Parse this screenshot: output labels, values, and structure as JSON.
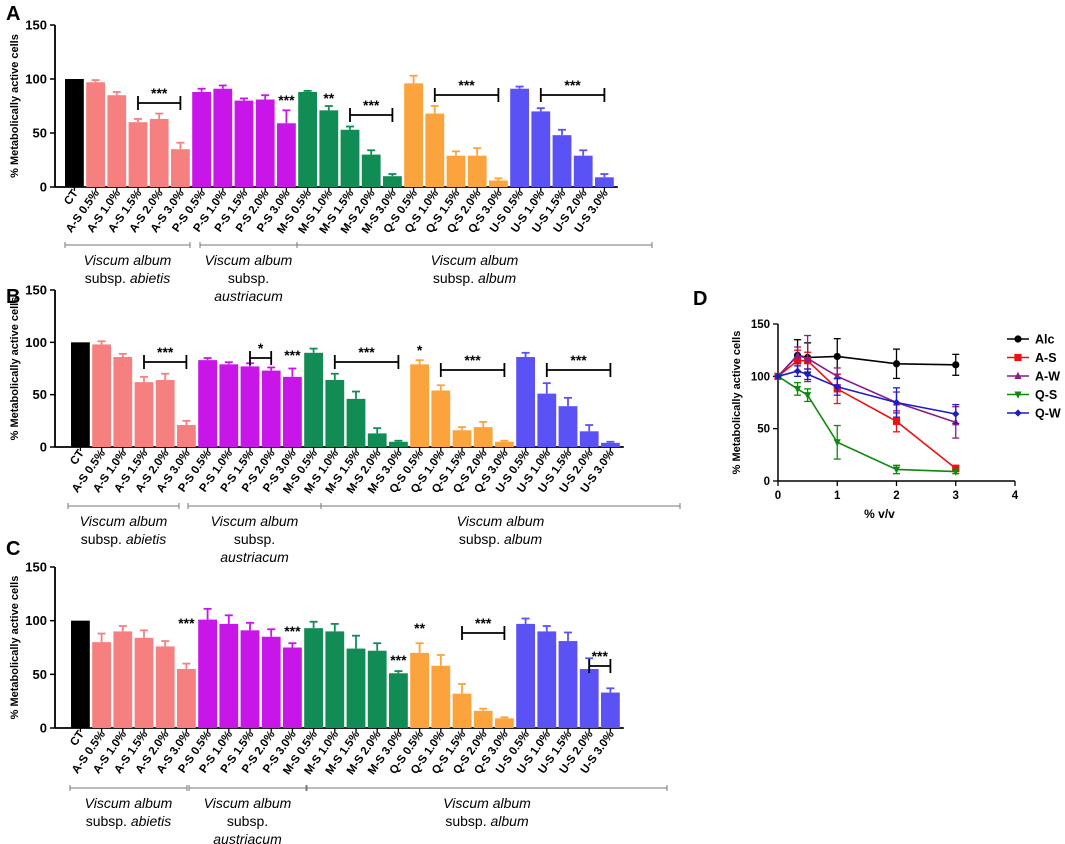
{
  "chart_data": [
    {
      "panel": "A",
      "type": "bar",
      "ylabel": "% Metabolically active cells",
      "ylim": [
        0,
        150
      ],
      "yticks": [
        0,
        50,
        100,
        150
      ],
      "categories": [
        "CT",
        "A-S 0.5%",
        "A-S 1.0%",
        "A-S 1.5%",
        "A-S 2.0%",
        "A-S 3.0%",
        "P-S 0.5%",
        "P-S 1.0%",
        "P-S 1.5%",
        "P-S 2.0%",
        "P-S 3.0%",
        "M-S 0.5%",
        "M-S 1.0%",
        "M-S 1.5%",
        "M-S 2.0%",
        "M-S 3.0%",
        "Q-S 0.5%",
        "Q-S 1.0%",
        "Q-S 1.5%",
        "Q-S 2.0%",
        "Q-S 3.0%",
        "U-S 0.5%",
        "U-S 1.0%",
        "U-S 1.5%",
        "U-S 2.0%",
        "U-S 3.0%"
      ],
      "values": [
        100,
        97,
        85,
        60,
        63,
        35,
        88,
        91,
        80,
        81,
        59,
        88,
        71,
        53,
        30,
        10,
        96,
        68,
        29,
        29,
        6,
        91,
        70,
        48,
        29,
        9
      ],
      "errors": [
        0,
        2,
        3,
        3,
        5,
        6,
        3,
        3,
        2,
        4,
        12,
        1,
        4,
        3,
        4,
        2,
        7,
        7,
        4,
        7,
        2,
        2,
        3,
        5,
        5,
        3
      ],
      "groups": [
        {
          "name": "Viscum album",
          "sub": "subsp. ",
          "subname": "abietis"
        },
        {
          "name": "Viscum album",
          "sub": "subsp.",
          "subname": "austriacum"
        },
        {
          "name": "Viscum album",
          "sub": "subsp. ",
          "subname": "album"
        }
      ],
      "annotations": [
        "***",
        "***",
        "**",
        "***",
        "***",
        "***"
      ]
    },
    {
      "panel": "B",
      "type": "bar",
      "ylabel": "% Metabolically active cells",
      "ylim": [
        0,
        150
      ],
      "yticks": [
        0,
        50,
        100,
        150
      ],
      "categories": [
        "CT",
        "A-S 0.5%",
        "A-S 1.0%",
        "A-S 1.5%",
        "A-S 2.0%",
        "A-S 3.0%",
        "P-S 0.5%",
        "P-S 1.0%",
        "P-S 1.5%",
        "P-S 2.0%",
        "P-S 3.0%",
        "M-S 0.5%",
        "M-S 1.0%",
        "M-S 1.5%",
        "M-S 2.0%",
        "M-S 3.0%",
        "Q-S 0.5%",
        "Q-S 1.0%",
        "Q-S 1.5%",
        "Q-S 2.0%",
        "Q-S 3.0%",
        "U-S 0.5%",
        "U-S 1.0%",
        "U-S 1.5%",
        "U-S 2.0%",
        "U-S 3.0%"
      ],
      "values": [
        100,
        98,
        86,
        62,
        64,
        21,
        83,
        79,
        77,
        73,
        67,
        90,
        64,
        46,
        13,
        5,
        79,
        54,
        16,
        19,
        5,
        86,
        51,
        39,
        15,
        4
      ],
      "errors": [
        0,
        3,
        3,
        5,
        6,
        4,
        2,
        2,
        3,
        3,
        8,
        4,
        6,
        7,
        5,
        1,
        4,
        5,
        3,
        5,
        1,
        4,
        10,
        8,
        6,
        1
      ],
      "groups": [
        {
          "name": "Viscum album",
          "sub": "subsp. ",
          "subname": "abietis"
        },
        {
          "name": "Viscum album",
          "sub": "subsp.",
          "subname": "austriacum"
        },
        {
          "name": "Viscum album",
          "sub": "subsp. ",
          "subname": "album"
        }
      ],
      "annotations": [
        "***",
        "*",
        "***",
        "***",
        "*",
        "***",
        "***"
      ]
    },
    {
      "panel": "C",
      "type": "bar",
      "ylabel": "% Metabolically active cells",
      "ylim": [
        0,
        150
      ],
      "yticks": [
        0,
        50,
        100,
        150
      ],
      "categories": [
        "CT",
        "A-S 0.5%",
        "A-S 1.0%",
        "A-S 1.5%",
        "A-S 2.0%",
        "A-S 3.0%",
        "P-S 0.5%",
        "P-S 1.0%",
        "P-S 1.5%",
        "P-S 2.0%",
        "P-S 3.0%",
        "M-S 0.5%",
        "M-S 1.0%",
        "M-S 1.5%",
        "M-S 2.0%",
        "M-S 3.0%",
        "Q-S 0.5%",
        "Q-S 1.0%",
        "Q-S 1.5%",
        "Q-S 2.0%",
        "Q-S 3.0%",
        "U-S 0.5%",
        "U-S 1.0%",
        "U-S 1.5%",
        "U-S 2.0%",
        "U-S 3.0%"
      ],
      "values": [
        100,
        80,
        90,
        84,
        76,
        55,
        101,
        97,
        91,
        85,
        75,
        93,
        90,
        74,
        72,
        51,
        70,
        58,
        32,
        16,
        9,
        97,
        90,
        81,
        55,
        33
      ],
      "errors": [
        0,
        8,
        5,
        7,
        5,
        5,
        10,
        8,
        7,
        7,
        4,
        6,
        7,
        12,
        7,
        2,
        9,
        10,
        9,
        2,
        1,
        5,
        5,
        8,
        10,
        4
      ],
      "groups": [
        {
          "name": "Viscum album",
          "sub": "subsp. ",
          "subname": "abietis"
        },
        {
          "name": "Viscum album",
          "sub": "subsp.",
          "subname": "austriacum"
        },
        {
          "name": "Viscum album",
          "sub": "subsp. ",
          "subname": "album"
        }
      ],
      "annotations": [
        "***",
        "***",
        "***",
        "**",
        "***",
        "***"
      ]
    },
    {
      "panel": "D",
      "type": "line",
      "xlabel": "% v/v",
      "ylabel": "% Metabolically active cells",
      "xlim": [
        0,
        4
      ],
      "ylim": [
        0,
        150
      ],
      "xticks": [
        0,
        1,
        2,
        3,
        4
      ],
      "yticks": [
        0,
        50,
        100,
        150
      ],
      "series": [
        {
          "name": "Alc",
          "color": "#000000",
          "marker": "circle",
          "x": [
            0,
            0.33,
            0.5,
            1,
            2,
            3
          ],
          "y": [
            100,
            120,
            118,
            119,
            112,
            111
          ],
          "err": [
            0,
            15,
            14,
            17,
            14,
            10
          ]
        },
        {
          "name": "A-S",
          "color": "#ee1111",
          "marker": "square",
          "x": [
            0,
            0.33,
            0.5,
            1,
            2,
            3
          ],
          "y": [
            100,
            115,
            115,
            88,
            57,
            12
          ],
          "err": [
            0,
            10,
            8,
            14,
            10,
            3
          ]
        },
        {
          "name": "A-W",
          "color": "#8b1a8b",
          "marker": "triangle",
          "x": [
            0,
            0.33,
            0.5,
            1,
            2,
            3
          ],
          "y": [
            100,
            120,
            117,
            100,
            75,
            56
          ],
          "err": [
            0,
            8,
            22,
            8,
            10,
            15
          ]
        },
        {
          "name": "Q-S",
          "color": "#0b8a0b",
          "marker": "triangle-down",
          "x": [
            0,
            0.33,
            0.5,
            1,
            2,
            3
          ],
          "y": [
            100,
            88,
            82,
            37,
            11,
            9
          ],
          "err": [
            0,
            6,
            6,
            16,
            4,
            2
          ]
        },
        {
          "name": "Q-W",
          "color": "#1c1cc8",
          "marker": "diamond",
          "x": [
            0,
            0.33,
            0.5,
            1,
            2,
            3
          ],
          "y": [
            100,
            105,
            102,
            90,
            75,
            64
          ],
          "err": [
            0,
            5,
            5,
            8,
            14,
            9
          ]
        }
      ]
    }
  ],
  "panel_labels": [
    "A",
    "B",
    "C",
    "D"
  ],
  "colors": {
    "CT": "#000000",
    "A-S": "#f68080",
    "P-S": "#c815e8",
    "M-S": "#118c55",
    "Q-S": "#fba43d",
    "U-S": "#5a52f5"
  }
}
